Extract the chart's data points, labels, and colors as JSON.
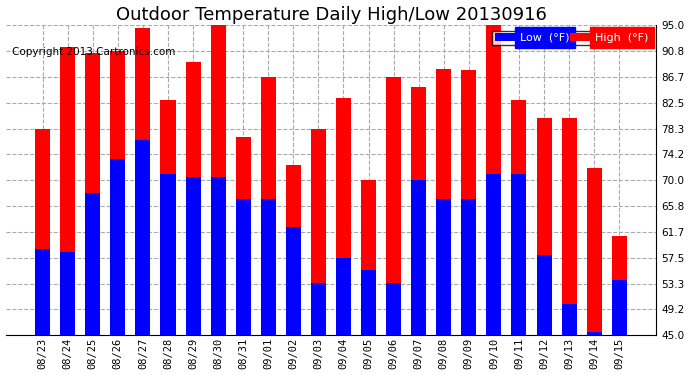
{
  "title": "Outdoor Temperature Daily High/Low 20130916",
  "copyright": "Copyright 2013 Cartronics.com",
  "legend_low": "Low  (°F)",
  "legend_high": "High  (°F)",
  "dates": [
    "08/23",
    "08/24",
    "08/25",
    "08/26",
    "08/27",
    "08/28",
    "08/29",
    "08/30",
    "08/31",
    "09/01",
    "09/02",
    "09/03",
    "09/04",
    "09/05",
    "09/06",
    "09/07",
    "09/08",
    "09/09",
    "09/10",
    "09/11",
    "09/12",
    "09/13",
    "09/14",
    "09/15"
  ],
  "high": [
    78.3,
    91.4,
    90.5,
    90.8,
    94.6,
    83.0,
    89.0,
    95.0,
    77.0,
    86.7,
    72.5,
    78.3,
    83.3,
    70.0,
    86.7,
    85.0,
    88.0,
    87.8,
    95.0,
    83.0,
    80.0,
    80.0,
    72.0,
    61.0
  ],
  "low": [
    59.0,
    58.5,
    68.0,
    73.5,
    76.5,
    71.0,
    70.5,
    70.5,
    67.0,
    67.0,
    62.5,
    53.5,
    57.5,
    55.5,
    53.5,
    70.0,
    67.0,
    67.0,
    71.0,
    71.0,
    58.0,
    50.0,
    45.5,
    54.0
  ],
  "ylim": [
    45.0,
    95.0
  ],
  "yticks": [
    45.0,
    49.2,
    53.3,
    57.5,
    61.7,
    65.8,
    70.0,
    74.2,
    78.3,
    82.5,
    86.7,
    90.8,
    95.0
  ],
  "low_color": "#0000ff",
  "high_color": "#ff0000",
  "bg_color": "#ffffff",
  "plot_bg_color": "#ffffff",
  "bar_width": 0.6,
  "title_fontsize": 13,
  "tick_fontsize": 7.5,
  "copyright_fontsize": 7.5
}
